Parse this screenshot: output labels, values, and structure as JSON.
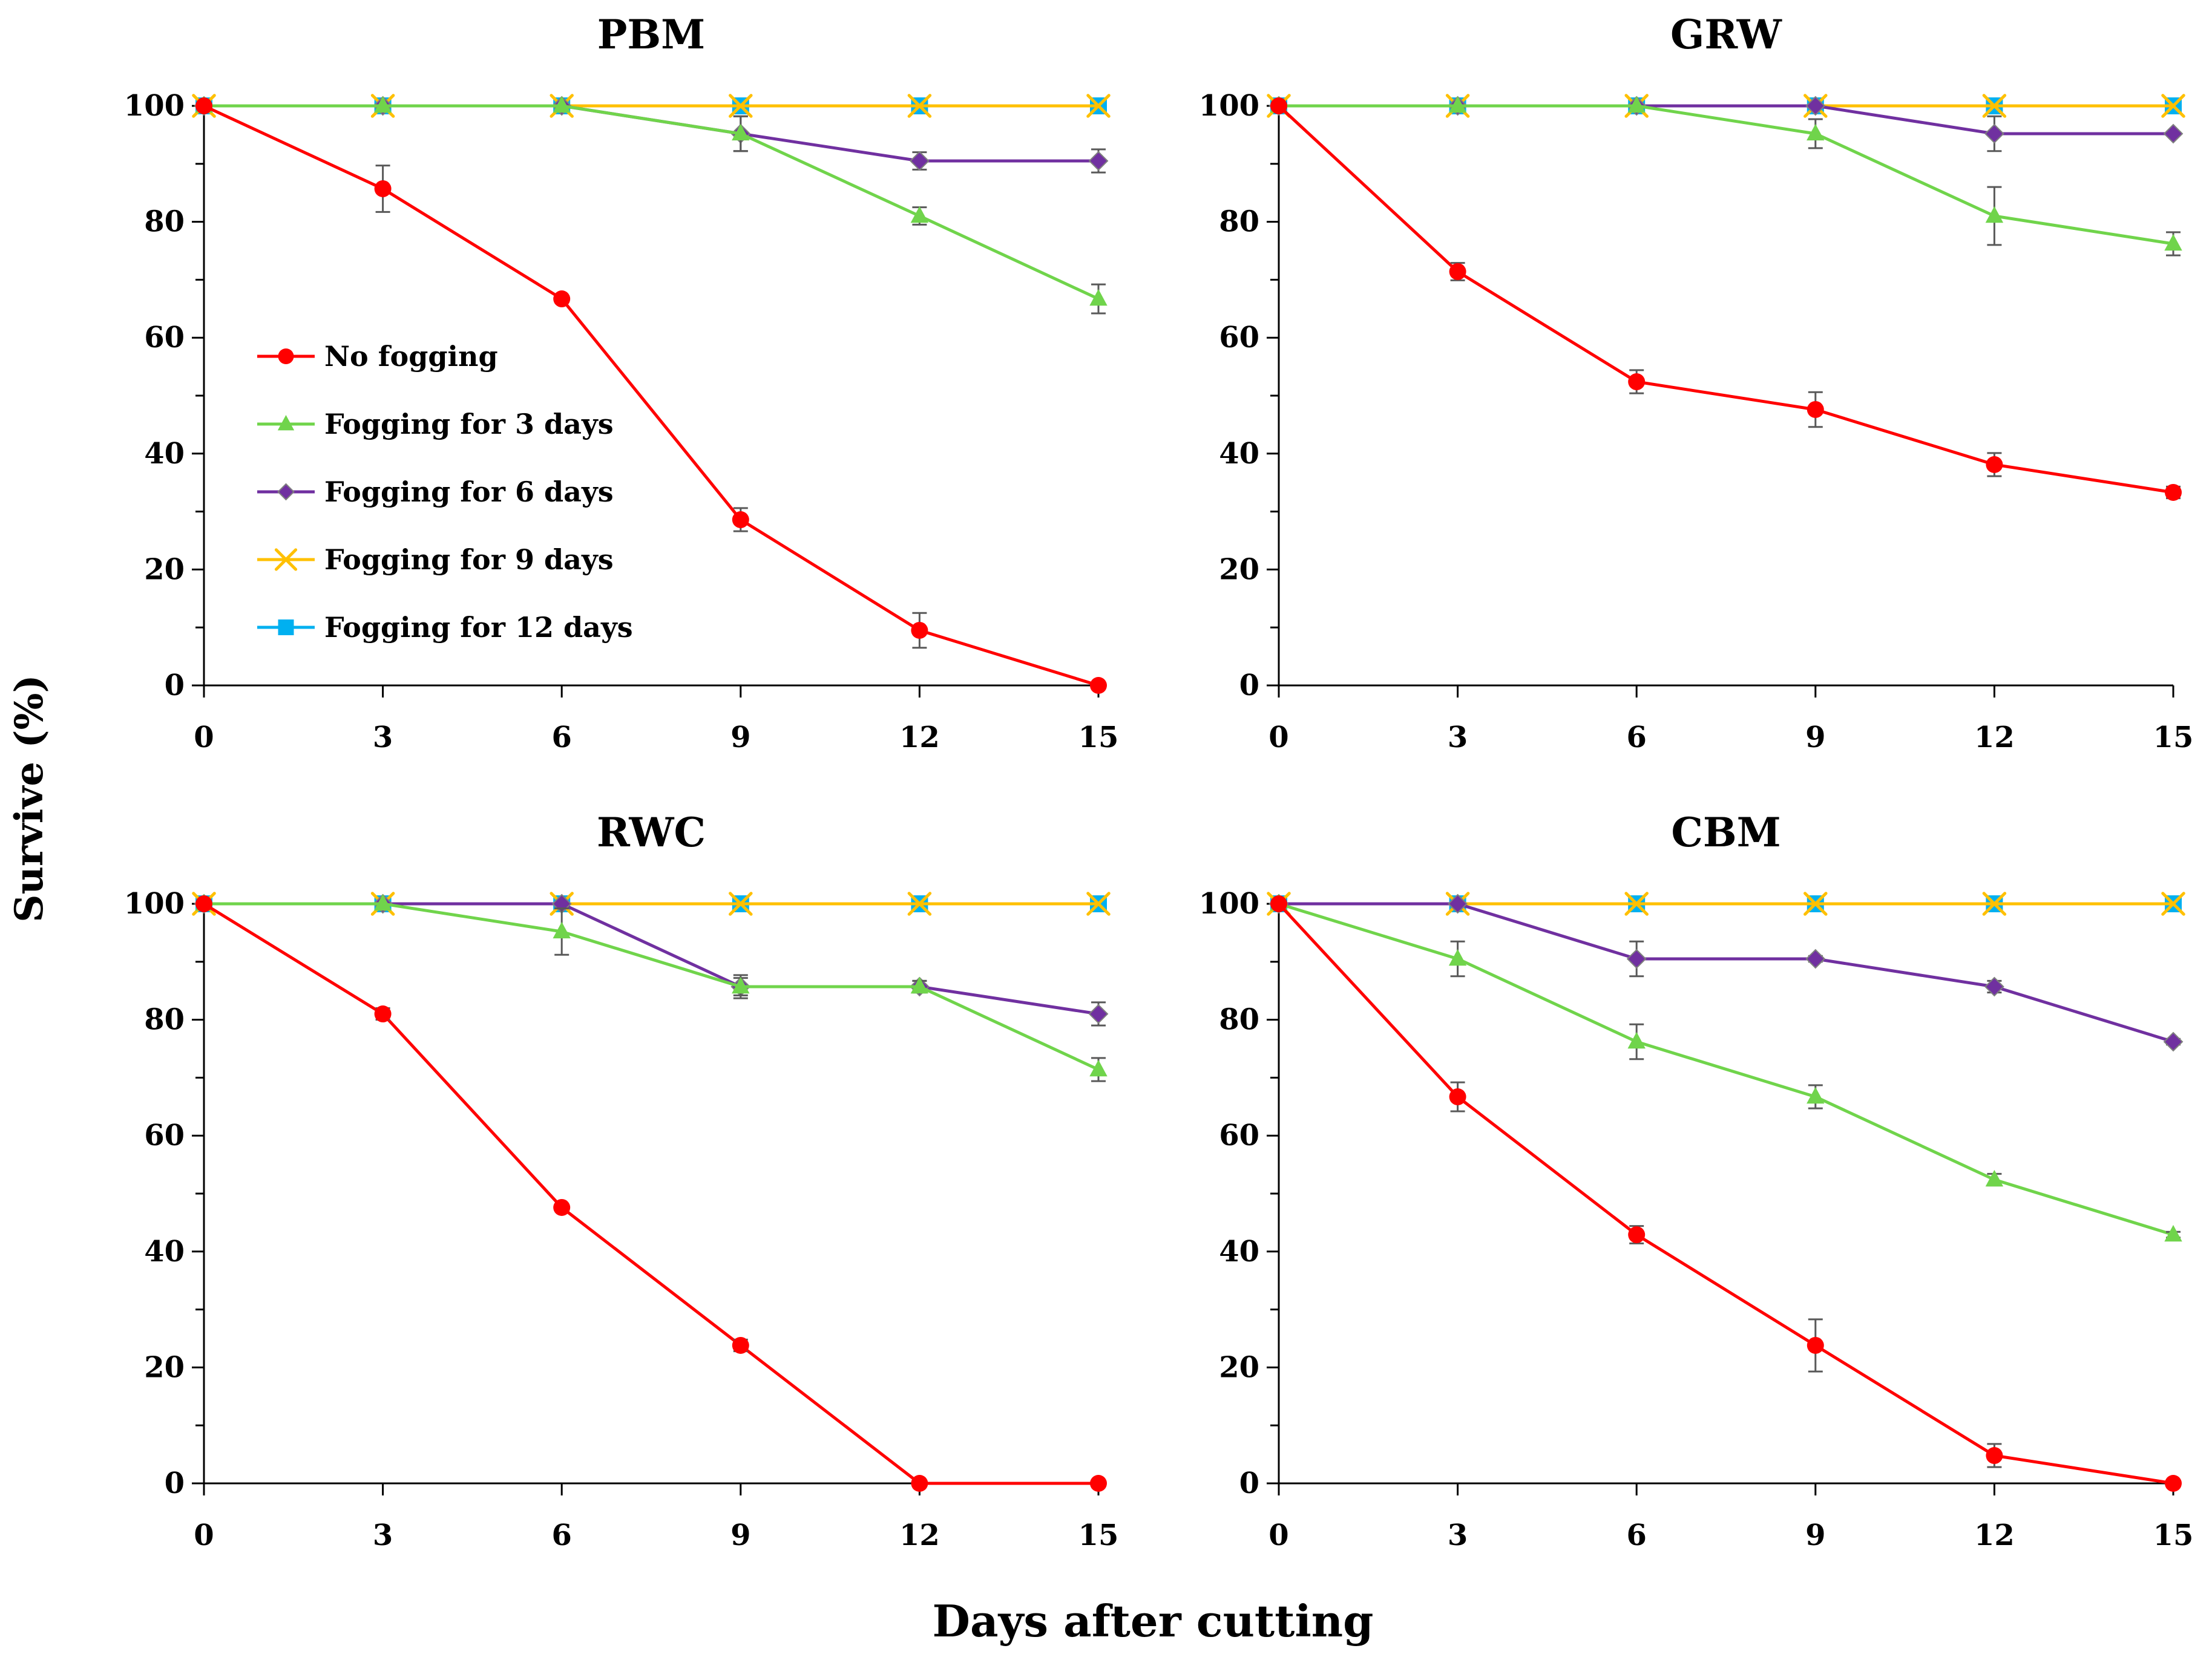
{
  "figure": {
    "ylabel": "Survive (%)",
    "xlabel": "Days after cutting"
  },
  "legend": [
    {
      "name": "No fogging",
      "color": "#FF0000",
      "marker": "circle"
    },
    {
      "name": "Fogging for 3 days",
      "color": "#70D44B",
      "marker": "triangle"
    },
    {
      "name": "Fogging for 6 days",
      "color": "#7030A0",
      "marker": "diamond"
    },
    {
      "name": "Fogging for 9 days",
      "color": "#FFC000",
      "marker": "x"
    },
    {
      "name": "Fogging for 12 days",
      "color": "#00B0F0",
      "marker": "square"
    }
  ],
  "chart_data": [
    {
      "type": "line",
      "title": "PBM",
      "x": [
        0,
        3,
        6,
        9,
        12,
        15
      ],
      "xticks": [
        "0",
        "3",
        "6",
        "9",
        "12",
        "15"
      ],
      "yticks": [
        "0",
        "20",
        "40",
        "60",
        "80",
        "100"
      ],
      "xlim": [
        0,
        15
      ],
      "ylim": [
        0,
        100
      ],
      "series": [
        {
          "name": "No fogging",
          "values": [
            100,
            85.7,
            66.7,
            28.6,
            9.5,
            0
          ],
          "errors": [
            0,
            4,
            0,
            2,
            3,
            0
          ]
        },
        {
          "name": "Fogging for 3 days",
          "values": [
            100,
            100,
            100,
            95.2,
            81,
            66.7
          ],
          "errors": [
            0,
            0,
            0,
            3,
            1.5,
            2.5
          ]
        },
        {
          "name": "Fogging for 6 days",
          "values": [
            100,
            100,
            100,
            95.2,
            90.5,
            90.5
          ],
          "errors": [
            0,
            0,
            0,
            3,
            1.5,
            2
          ]
        },
        {
          "name": "Fogging for 9 days",
          "values": [
            100,
            100,
            100,
            100,
            100,
            100
          ],
          "errors": [
            0,
            0,
            0,
            0,
            0,
            0
          ]
        },
        {
          "name": "Fogging for 12 days",
          "values": [
            100,
            100,
            100,
            100,
            100,
            100
          ],
          "errors": [
            0,
            0,
            0,
            0,
            0,
            0
          ]
        }
      ]
    },
    {
      "type": "line",
      "title": "GRW",
      "x": [
        0,
        3,
        6,
        9,
        12,
        15
      ],
      "xticks": [
        "0",
        "3",
        "6",
        "9",
        "12",
        "15"
      ],
      "yticks": [
        "0",
        "20",
        "40",
        "60",
        "80",
        "100"
      ],
      "xlim": [
        0,
        15
      ],
      "ylim": [
        0,
        100
      ],
      "series": [
        {
          "name": "No fogging",
          "values": [
            100,
            71.4,
            52.4,
            47.6,
            38.1,
            33.3
          ],
          "errors": [
            0,
            1.5,
            2,
            3,
            2,
            1
          ]
        },
        {
          "name": "Fogging for 3 days",
          "values": [
            100,
            100,
            100,
            95.2,
            81,
            76.2
          ],
          "errors": [
            0,
            0,
            0,
            2.5,
            5,
            2
          ]
        },
        {
          "name": "Fogging for 6 days",
          "values": [
            100,
            100,
            100,
            100,
            95.2,
            95.2
          ],
          "errors": [
            0,
            0,
            0,
            0,
            3,
            0
          ]
        },
        {
          "name": "Fogging for 9 days",
          "values": [
            100,
            100,
            100,
            100,
            100,
            100
          ],
          "errors": [
            0,
            0,
            0,
            0,
            0,
            0
          ]
        },
        {
          "name": "Fogging for 12 days",
          "values": [
            100,
            100,
            100,
            100,
            100,
            100
          ],
          "errors": [
            0,
            0,
            0,
            0,
            0,
            0
          ]
        }
      ]
    },
    {
      "type": "line",
      "title": "RWC",
      "x": [
        0,
        3,
        6,
        9,
        12,
        15
      ],
      "xticks": [
        "0",
        "3",
        "6",
        "9",
        "12",
        "15"
      ],
      "yticks": [
        "0",
        "20",
        "40",
        "60",
        "80",
        "100"
      ],
      "xlim": [
        0,
        15
      ],
      "ylim": [
        0,
        100
      ],
      "series": [
        {
          "name": "No fogging",
          "values": [
            100,
            81,
            47.6,
            23.8,
            0,
            0
          ],
          "errors": [
            0,
            1,
            0.5,
            1,
            0,
            0
          ]
        },
        {
          "name": "Fogging for 3 days",
          "values": [
            100,
            100,
            95.2,
            85.7,
            85.7,
            71.4
          ],
          "errors": [
            0,
            0,
            4,
            1.5,
            1,
            2
          ]
        },
        {
          "name": "Fogging for 6 days",
          "values": [
            100,
            100,
            100,
            85.7,
            85.7,
            81
          ],
          "errors": [
            0,
            0,
            0,
            2,
            1,
            2
          ]
        },
        {
          "name": "Fogging for 9 days",
          "values": [
            100,
            100,
            100,
            100,
            100,
            100
          ],
          "errors": [
            0,
            0,
            0,
            0,
            0,
            0
          ]
        },
        {
          "name": "Fogging for 12 days",
          "values": [
            100,
            100,
            100,
            100,
            100,
            100
          ],
          "errors": [
            0,
            0,
            0,
            0,
            0,
            0
          ]
        }
      ]
    },
    {
      "type": "line",
      "title": "CBM",
      "x": [
        0,
        3,
        6,
        9,
        12,
        15
      ],
      "xticks": [
        "0",
        "3",
        "6",
        "9",
        "12",
        "15"
      ],
      "yticks": [
        "0",
        "20",
        "40",
        "60",
        "80",
        "100"
      ],
      "xlim": [
        0,
        15
      ],
      "ylim": [
        0,
        100
      ],
      "series": [
        {
          "name": "No fogging",
          "values": [
            100,
            66.7,
            42.9,
            23.8,
            4.8,
            0
          ],
          "errors": [
            0,
            2.5,
            1.5,
            4.5,
            2,
            0
          ]
        },
        {
          "name": "Fogging for 3 days",
          "values": [
            100,
            90.5,
            76.2,
            66.7,
            52.4,
            42.9
          ],
          "errors": [
            0,
            3,
            3,
            2,
            1,
            0.5
          ]
        },
        {
          "name": "Fogging for 6 days",
          "values": [
            100,
            100,
            90.5,
            90.5,
            85.7,
            76.2
          ],
          "errors": [
            0,
            0,
            3,
            0.5,
            1,
            0.5
          ]
        },
        {
          "name": "Fogging for 9 days",
          "values": [
            100,
            100,
            100,
            100,
            100,
            100
          ],
          "errors": [
            0,
            0,
            0,
            0,
            0,
            0
          ]
        },
        {
          "name": "Fogging for 12 days",
          "values": [
            100,
            100,
            100,
            100,
            100,
            100
          ],
          "errors": [
            0,
            0,
            0,
            0,
            0,
            0
          ]
        }
      ]
    }
  ]
}
